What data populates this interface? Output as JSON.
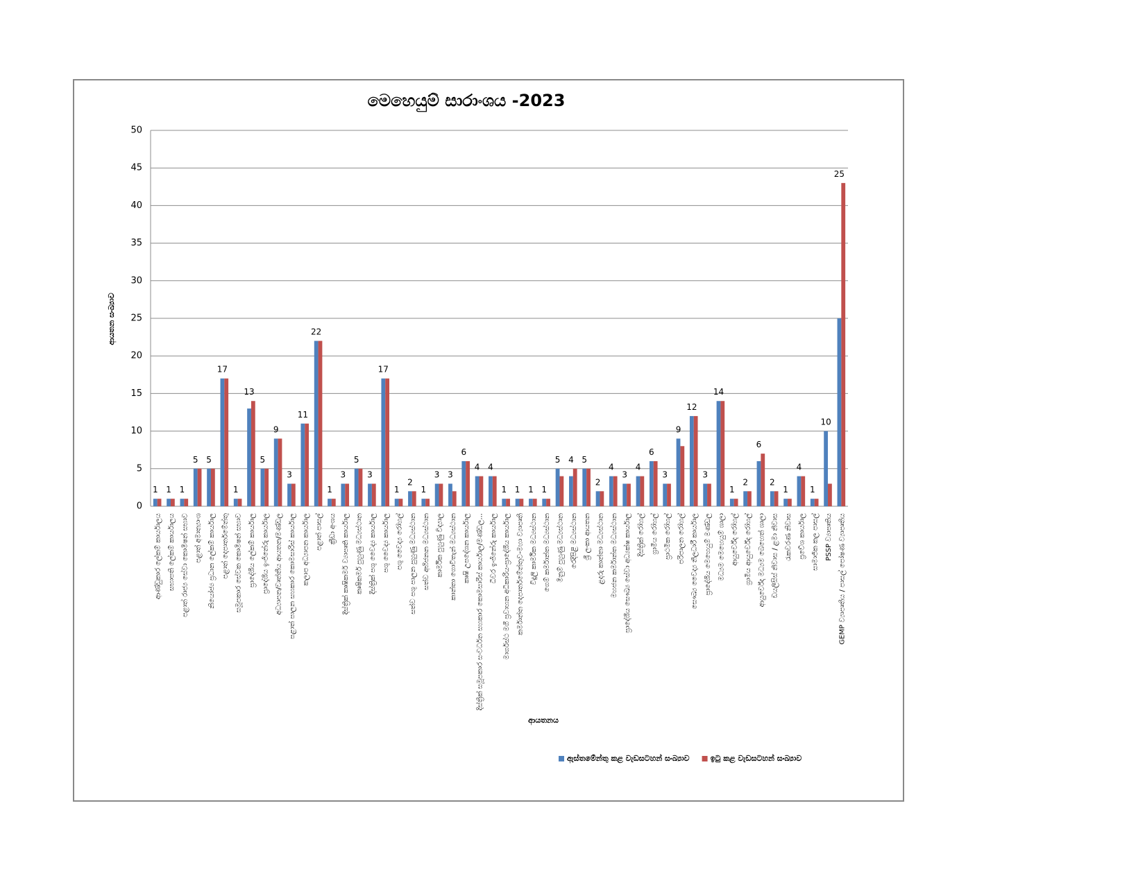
{
  "chart_data": {
    "type": "bar",
    "title": "මෙහෙයුම් සාරාංශය -2023",
    "x_label": "ආයතනය",
    "y_label": "ආයතන සංඛ්‍යාව",
    "categories": [
      "ආණ්ඩුකාර ලේකම් කාර්යාලය",
      "සභාපති ලේකම් කාර්යාලය",
      "පළාත් රාජ්‍ය සේවා කොමිෂන් සභාව",
      "පළාත් අමාත්‍යාංශ",
      "නියෝජ්‍ය ප්‍රධාන ලේකම් කාර්යාල",
      "පළාත් දෙපාර්තමේන්තු",
      "සමූපකාර සේවක කොමිෂන් සභාව",
      "ප්‍රාදේශීය ලේකම් කාර්යාල",
      "ප්‍රාදේශීය ඉංජිනේරු කාර්යාල",
      "අධ්‍යාපන/වෘත්තීය ආයතන/මණ්ඩල",
      "පළාත් පාලන සහකාර කොමසාරිස් කාර්යාල",
      "කලාප අධ්‍යාපන කාර්යාල",
      "පළාත් පාසල්",
      "ක්‍රීඩා අංශය",
      "දිස්ත්‍රික් කෘෂිකර්ම ව්‍යාපෘති කාර්යාල",
      "කෘෂිකර්ම පුහුණු මධ්‍යස්ථාන",
      "දිස්ත්‍රික් පශු වෛද්‍ය කාර්යාල",
      "පශු වෛද්‍ය කාර්යාල",
      "පශු වෛද්‍ය රෝහල්",
      "සත්ව පශු පාලන පුහුණු මධ්‍යස්ථාන",
      "සත්ව අභිජනන මධ්‍යස්ථාන",
      "කාර්මික පුහුණු විද්‍යාල",
      "කාන්තා ගොවිතැන් මධ්‍යස්ථාන",
      "කෘෂි උපදේශන කාර්යාල",
      "දිස්ත්‍රික් සමූපකාර සංවර්ධන සහකාර කොමසාරිස් කාර්යාල/මණ්ඩල...",
      "ධීවර ඉංජිනේරු කාර්යාල",
      "මාර්ගස්ථ මගී ප්‍රවාහන අධිකාරිය-ප්‍රාදේශීය කාර්යාල",
      "කර්මාන්ත දෙපාර්තමේන්තුව-මහා ව්‍යාපෘති",
      "විදුලි කාර්මික මධ්‍යස්ථාන",
      "ගෙම් කර්මාන්ත මධ්‍යස්ථාන",
      "මිනුම් පුහුණු මධ්‍යස්ථාන",
      "රෙදිපිළි මධ්‍යස්ථාන",
      "ශ්‍රී ලංකා ආයතන",
      "ළදරු කාන්තා මධ්‍යස්ථාන",
      "මහජන කර්මාන්ත මධ්‍යස්ථාන",
      "ප්‍රාදේශීය සෞඛ්‍ය සේවා අධ්‍යක්ෂ කාර්යාල",
      "දිස්ත්‍රික් රෝහල්",
      "ග්‍රාමීය රෝහල්",
      "ප්‍රාථමික රෝහල්",
      "පරිපාලන රෝහල්",
      "සෞඛ්‍ය වෛද්‍ය නිලධාරී කාර්යාල",
      "ප්‍රාදේශීය මෙහෙයුම් මණ්ඩල",
      "මධ්‍යම මෙහෙයුම් ශාලා",
      "ආයුර්වේද රෝහල්",
      "ග්‍රාමීය ආයුර්වේද රෝහල්",
      "ආයුර්වේද මධ්‍යම බෙහෙත් ශාලා",
      "ඩයලිසිස් නිවාස / ළමා නිවාස",
      "රැකවරණ නිවාස",
      "ප්‍රවේශ කාර්යාල",
      "සාමාජික කල පාසල්",
      "PSSP ව්‍යාපෘතිය",
      "GEMP ව්‍යාපෘතිය / පාසල් පෝෂණ ව්‍යාපෘතිය"
    ],
    "series": [
      {
        "name": "ඇස්තමේන්තු කළ වැඩසටහන් සංඛ්‍යාව",
        "color": "#4f81bd",
        "values": [
          1,
          1,
          1,
          5,
          5,
          17,
          1,
          13,
          5,
          9,
          3,
          11,
          22,
          1,
          3,
          5,
          3,
          17,
          1,
          2,
          1,
          3,
          3,
          6,
          4,
          4,
          1,
          1,
          1,
          1,
          5,
          4,
          5,
          2,
          4,
          3,
          4,
          6,
          3,
          9,
          12,
          3,
          14,
          1,
          2,
          6,
          2,
          1,
          4,
          1,
          10,
          25
        ]
      },
      {
        "name": "ඉටු කළ වැඩසටහන් සංඛ්‍යාව",
        "color": "#c0504d",
        "values": [
          1,
          1,
          1,
          5,
          5,
          17,
          1,
          14,
          5,
          9,
          3,
          11,
          22,
          1,
          3,
          5,
          3,
          17,
          1,
          2,
          1,
          3,
          2,
          6,
          4,
          4,
          1,
          1,
          1,
          1,
          4,
          5,
          5,
          2,
          4,
          3,
          4,
          6,
          3,
          8,
          12,
          3,
          14,
          1,
          2,
          7,
          2,
          1,
          4,
          1,
          3,
          43
        ]
      }
    ],
    "ylim": [
      0,
      50
    ],
    "yticks": [
      0,
      5,
      10,
      15,
      20,
      25,
      30,
      35,
      40,
      45,
      50
    ],
    "grid": true,
    "legend": "bottom-right"
  }
}
